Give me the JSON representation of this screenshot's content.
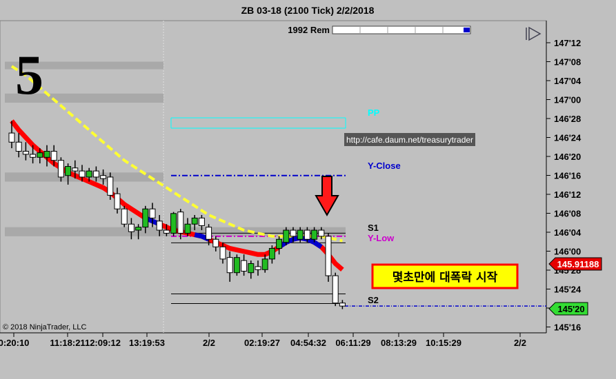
{
  "window": {
    "title": "ZB 03-18 (2100 Tick)  2/2/2018"
  },
  "header": {
    "remaining_label": "1992 Rem",
    "remaining_fraction": 0.98
  },
  "annotations": {
    "big_number": "5",
    "url": "http://cafe.daum.net/treasurytrader",
    "korean_box": "몇초만에 대폭락 시작",
    "copyright": "© 2018 NinjaTrader, LLC"
  },
  "levels": {
    "pp": "PP",
    "y_close": "Y-Close",
    "s1": "S1",
    "y_low": "Y-Low",
    "s2": "S2"
  },
  "price_badges": {
    "current": "145.91188",
    "last": "145'20"
  },
  "colors": {
    "background": "#c0c0c0",
    "pp": "#00ffff",
    "y_close": "#0000cc",
    "y_low": "#cc00cc",
    "fast_ma": "#ff0000",
    "fast_ma_down": "#0000cc",
    "slow_ma": "#ffff33",
    "up_candle": "#22bb22",
    "down_candle": "#ffffff",
    "current_badge": "#e60000",
    "last_badge": "#33dd33",
    "korean_box_bg": "#ffff00",
    "korean_box_border": "#ff0000"
  },
  "chart_data": {
    "type": "candlestick",
    "y_axis": {
      "unit": "32nds",
      "range": [
        "145'14",
        "147'14"
      ],
      "tick_labels": [
        "147'12",
        "147'08",
        "147'04",
        "147'00",
        "146'28",
        "146'24",
        "146'20",
        "146'16",
        "146'12",
        "146'08",
        "146'04",
        "146'00",
        "145'28",
        "145'24",
        "145'20",
        "145'16"
      ]
    },
    "x_axis": {
      "tick_labels": [
        "0:20:10",
        "11:18:21",
        "12:09:12",
        "13:19:53",
        "2/2",
        "02:19:27",
        "04:54:32",
        "06:11:29",
        "08:13:29",
        "10:15:29",
        "2/2"
      ]
    },
    "horizontal_levels": [
      {
        "name": "PP",
        "value": 146.88
      },
      {
        "name": "Y-Close",
        "value": 146.5
      },
      {
        "name": "S1",
        "value": 146.12
      },
      {
        "name": "Y-Low",
        "value": 146.1
      },
      {
        "name": "S2",
        "value": 145.72
      }
    ],
    "candles": [
      {
        "o": 146.78,
        "h": 146.86,
        "l": 146.68,
        "c": 146.72
      },
      {
        "o": 146.72,
        "h": 146.78,
        "l": 146.62,
        "c": 146.66
      },
      {
        "o": 146.66,
        "h": 146.72,
        "l": 146.6,
        "c": 146.64
      },
      {
        "o": 146.64,
        "h": 146.7,
        "l": 146.58,
        "c": 146.62
      },
      {
        "o": 146.62,
        "h": 146.68,
        "l": 146.58,
        "c": 146.65
      },
      {
        "o": 146.62,
        "h": 146.7,
        "l": 146.56,
        "c": 146.66
      },
      {
        "o": 146.66,
        "h": 146.7,
        "l": 146.56,
        "c": 146.6
      },
      {
        "o": 146.6,
        "h": 146.62,
        "l": 146.46,
        "c": 146.49
      },
      {
        "o": 146.5,
        "h": 146.58,
        "l": 146.44,
        "c": 146.56
      },
      {
        "o": 146.55,
        "h": 146.6,
        "l": 146.48,
        "c": 146.53
      },
      {
        "o": 146.53,
        "h": 146.57,
        "l": 146.46,
        "c": 146.49
      },
      {
        "o": 146.49,
        "h": 146.55,
        "l": 146.46,
        "c": 146.53
      },
      {
        "o": 146.53,
        "h": 146.56,
        "l": 146.46,
        "c": 146.49
      },
      {
        "o": 146.5,
        "h": 146.54,
        "l": 146.44,
        "c": 146.48
      },
      {
        "o": 146.49,
        "h": 146.52,
        "l": 146.34,
        "c": 146.37
      },
      {
        "o": 146.38,
        "h": 146.42,
        "l": 146.25,
        "c": 146.28
      },
      {
        "o": 146.28,
        "h": 146.3,
        "l": 146.16,
        "c": 146.18
      },
      {
        "o": 146.18,
        "h": 146.22,
        "l": 146.08,
        "c": 146.13
      },
      {
        "o": 146.14,
        "h": 146.18,
        "l": 146.08,
        "c": 146.16
      },
      {
        "o": 146.16,
        "h": 146.3,
        "l": 146.12,
        "c": 146.28
      },
      {
        "o": 146.28,
        "h": 146.32,
        "l": 146.16,
        "c": 146.22
      },
      {
        "o": 146.2,
        "h": 146.24,
        "l": 146.1,
        "c": 146.14
      },
      {
        "o": 146.14,
        "h": 146.18,
        "l": 146.1,
        "c": 146.12
      },
      {
        "o": 146.12,
        "h": 146.26,
        "l": 146.1,
        "c": 146.25
      },
      {
        "o": 146.26,
        "h": 146.28,
        "l": 146.08,
        "c": 146.12
      },
      {
        "o": 146.12,
        "h": 146.22,
        "l": 146.1,
        "c": 146.18
      },
      {
        "o": 146.18,
        "h": 146.24,
        "l": 146.14,
        "c": 146.22
      },
      {
        "o": 146.22,
        "h": 146.24,
        "l": 146.14,
        "c": 146.17
      },
      {
        "o": 146.16,
        "h": 146.18,
        "l": 146.04,
        "c": 146.08
      },
      {
        "o": 146.08,
        "h": 146.1,
        "l": 146.0,
        "c": 146.03
      },
      {
        "o": 146.03,
        "h": 146.06,
        "l": 145.92,
        "c": 145.95
      },
      {
        "o": 145.96,
        "h": 146.0,
        "l": 145.8,
        "c": 145.86
      },
      {
        "o": 145.86,
        "h": 145.98,
        "l": 145.84,
        "c": 145.96
      },
      {
        "o": 145.94,
        "h": 145.98,
        "l": 145.84,
        "c": 145.87
      },
      {
        "o": 145.86,
        "h": 145.94,
        "l": 145.82,
        "c": 145.92
      },
      {
        "o": 145.9,
        "h": 145.94,
        "l": 145.84,
        "c": 145.88
      },
      {
        "o": 145.88,
        "h": 145.98,
        "l": 145.86,
        "c": 145.95
      },
      {
        "o": 145.95,
        "h": 146.04,
        "l": 145.92,
        "c": 146.02
      },
      {
        "o": 146.02,
        "h": 146.1,
        "l": 145.98,
        "c": 146.08
      },
      {
        "o": 146.06,
        "h": 146.16,
        "l": 146.04,
        "c": 146.14
      },
      {
        "o": 146.14,
        "h": 146.16,
        "l": 146.06,
        "c": 146.1
      },
      {
        "o": 146.08,
        "h": 146.16,
        "l": 146.06,
        "c": 146.14
      },
      {
        "o": 146.14,
        "h": 146.16,
        "l": 146.06,
        "c": 146.08
      },
      {
        "o": 146.08,
        "h": 146.16,
        "l": 146.06,
        "c": 146.14
      },
      {
        "o": 146.14,
        "h": 146.16,
        "l": 146.08,
        "c": 146.1
      },
      {
        "o": 146.1,
        "h": 146.12,
        "l": 145.8,
        "c": 145.84
      },
      {
        "o": 145.84,
        "h": 145.86,
        "l": 145.64,
        "c": 145.66
      },
      {
        "o": 145.66,
        "h": 145.68,
        "l": 145.62,
        "c": 145.64
      }
    ],
    "series": [
      {
        "values": [
          146.86,
          146.8,
          146.75,
          146.7,
          146.66,
          146.62,
          146.58,
          146.55,
          146.52,
          146.5,
          146.48,
          146.46,
          146.44,
          146.42,
          146.39,
          146.35,
          146.31,
          146.28,
          146.25,
          146.22,
          146.2,
          146.18,
          146.16,
          146.14,
          146.13,
          146.12,
          146.11,
          146.1,
          146.08,
          146.06,
          146.04,
          146.02,
          146.01,
          146.0,
          145.99,
          145.98,
          145.98,
          146.0,
          146.03,
          146.06,
          146.08,
          146.09,
          146.08,
          146.06,
          146.03,
          145.98,
          145.92,
          145.88
        ]
      },
      {
        "values": [
          147.22,
          147.19,
          147.16,
          147.12,
          147.08,
          147.04,
          147.0,
          146.96,
          146.92,
          146.88,
          146.84,
          146.8,
          146.76,
          146.72,
          146.68,
          146.64,
          146.6,
          146.57,
          146.54,
          146.51,
          146.48,
          146.45,
          146.42,
          146.39,
          146.36,
          146.33,
          146.3,
          146.27,
          146.24,
          146.22,
          146.2,
          146.18,
          146.16,
          146.14,
          146.13,
          146.12,
          146.11,
          146.1,
          146.1,
          146.1,
          146.1,
          146.1,
          146.1,
          146.1,
          146.1,
          146.09,
          146.08,
          146.07
        ]
      }
    ]
  }
}
